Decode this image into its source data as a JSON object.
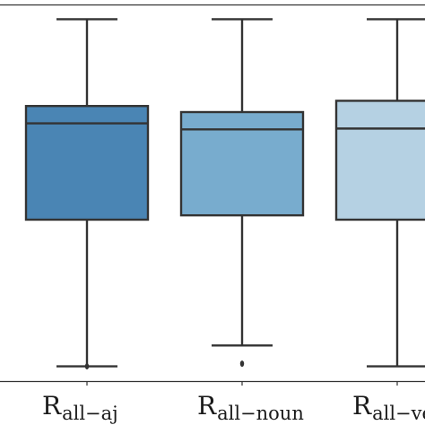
{
  "chart_data": {
    "type": "box",
    "ylim": [
      -1.085,
      1.085
    ],
    "grid": false,
    "legend": "none",
    "categories": [
      {
        "label_main": "R",
        "label_sub": "all−aj",
        "color": "#4a85b4",
        "whisker_low": -1.0,
        "q1": -0.155,
        "median": 0.4,
        "q3": 0.5,
        "whisker_high": 1.0,
        "outliers": [
          -1.0
        ]
      },
      {
        "label_main": "R",
        "label_sub": "all−noun",
        "color": "#78acce",
        "whisker_low": -0.88,
        "q1": -0.13,
        "median": 0.365,
        "q3": 0.465,
        "whisker_high": 1.0,
        "outliers": [
          -0.985
        ]
      },
      {
        "label_main": "R",
        "label_sub": "all−ve",
        "color": "#b5d1e3",
        "whisker_low": -1.0,
        "q1": -0.155,
        "median": 0.37,
        "q3": 0.53,
        "whisker_high": 1.0,
        "outliers": []
      }
    ]
  }
}
